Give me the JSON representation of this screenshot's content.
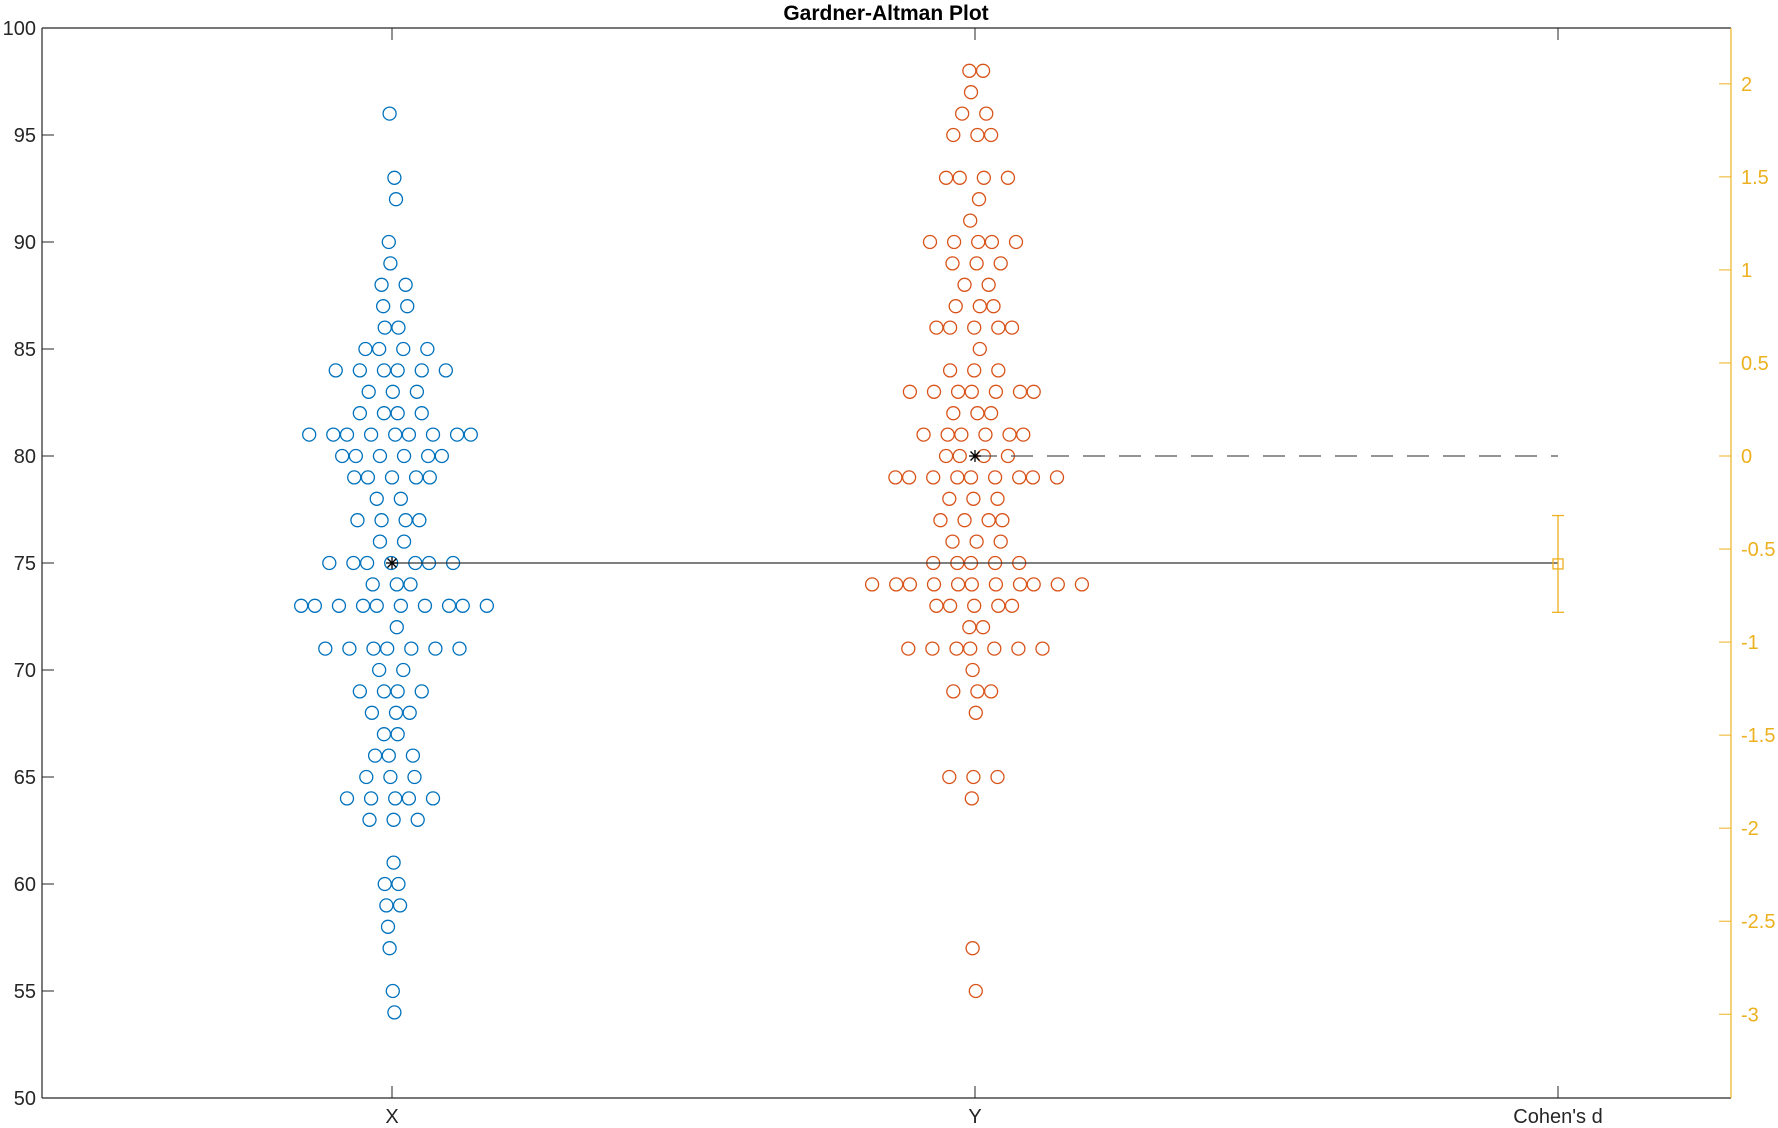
{
  "chart_data": {
    "type": "scatter",
    "title": "Gardner-Altman Plot",
    "categories": [
      "X",
      "Y",
      "Cohen's d"
    ],
    "ylim_left": [
      50,
      100
    ],
    "yticks_left": [
      50,
      55,
      60,
      65,
      70,
      75,
      80,
      85,
      90,
      95,
      100
    ],
    "ylim_right": [
      -3.45,
      2.3
    ],
    "yticks_right": [
      -3,
      -2.5,
      -2,
      -1.5,
      -1,
      -0.5,
      0,
      0.5,
      1,
      1.5,
      2
    ],
    "grid": false,
    "legend": "none",
    "colors": {
      "X": "#0072bd",
      "Y": "#d95319",
      "effect": "#edb120",
      "mean_marker": "#000000",
      "mean_line": "#333333",
      "dashed_line": "#555555",
      "axis": "#262626"
    },
    "series": [
      {
        "name": "X",
        "position": 1,
        "values": [
          96,
          93,
          92,
          90,
          89,
          88,
          88,
          87,
          87,
          86,
          86,
          85,
          85,
          85,
          85,
          84,
          84,
          84,
          84,
          84,
          84,
          83,
          83,
          83,
          82,
          82,
          82,
          82,
          81,
          81,
          81,
          81,
          81,
          81,
          81,
          81,
          81,
          80,
          80,
          80,
          80,
          80,
          80,
          79,
          79,
          79,
          79,
          79,
          78,
          78,
          77,
          77,
          77,
          77,
          76,
          76,
          75,
          75,
          75,
          75,
          75,
          75,
          75,
          74,
          74,
          74,
          73,
          73,
          73,
          73,
          73,
          73,
          73,
          73,
          73,
          73,
          72,
          71,
          71,
          71,
          71,
          71,
          71,
          71,
          70,
          70,
          69,
          69,
          69,
          69,
          68,
          68,
          68,
          67,
          67,
          66,
          66,
          66,
          65,
          65,
          65,
          64,
          64,
          64,
          64,
          64,
          63,
          63,
          63,
          61,
          60,
          60,
          59,
          59,
          58,
          57,
          55,
          54
        ]
      },
      {
        "name": "Y",
        "position": 2,
        "values": [
          98,
          98,
          97,
          96,
          96,
          95,
          95,
          95,
          93,
          93,
          93,
          93,
          92,
          91,
          90,
          90,
          90,
          90,
          90,
          89,
          89,
          89,
          88,
          88,
          87,
          87,
          87,
          86,
          86,
          86,
          86,
          86,
          85,
          84,
          84,
          84,
          83,
          83,
          83,
          83,
          83,
          83,
          83,
          82,
          82,
          82,
          81,
          81,
          81,
          81,
          81,
          81,
          80,
          80,
          80,
          80,
          79,
          79,
          79,
          79,
          79,
          79,
          79,
          79,
          79,
          78,
          78,
          78,
          77,
          77,
          77,
          77,
          76,
          76,
          76,
          75,
          75,
          75,
          75,
          75,
          74,
          74,
          74,
          74,
          74,
          74,
          74,
          74,
          74,
          74,
          74,
          73,
          73,
          73,
          73,
          73,
          72,
          72,
          71,
          71,
          71,
          71,
          71,
          71,
          71,
          70,
          69,
          69,
          69,
          68,
          65,
          65,
          65,
          64,
          57,
          55
        ]
      }
    ],
    "means": {
      "X": 75,
      "Y": 80
    },
    "effect_size": {
      "label": "Cohen's d",
      "estimate": -0.58,
      "ci": [
        -0.84,
        -0.32
      ]
    }
  }
}
